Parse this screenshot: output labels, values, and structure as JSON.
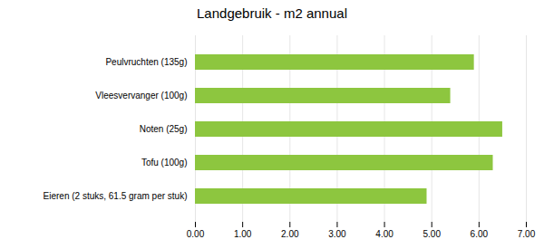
{
  "chart_data": {
    "type": "bar",
    "orientation": "horizontal",
    "title": "Landgebruik - m2 annual",
    "categories": [
      "Eieren (2 stuks, 61.5 gram per stuk)",
      "Tofu (100g)",
      "Noten (25g)",
      "Vleesvervanger (100g)",
      "Peulvruchten (135g)"
    ],
    "values": [
      4.9,
      6.3,
      6.5,
      5.4,
      5.9
    ],
    "color": "#8DC63F",
    "xlim": [
      0,
      7.0
    ],
    "xticks": [
      {
        "value": 0,
        "label": "0.00"
      },
      {
        "value": 1,
        "label": "1.00"
      },
      {
        "value": 2,
        "label": "2.00"
      },
      {
        "value": 3,
        "label": "3.00"
      },
      {
        "value": 4,
        "label": "4.00"
      },
      {
        "value": 5,
        "label": "5.00"
      },
      {
        "value": 6,
        "label": "6.00"
      },
      {
        "value": 7,
        "label": "7.00"
      }
    ],
    "grid": true
  }
}
